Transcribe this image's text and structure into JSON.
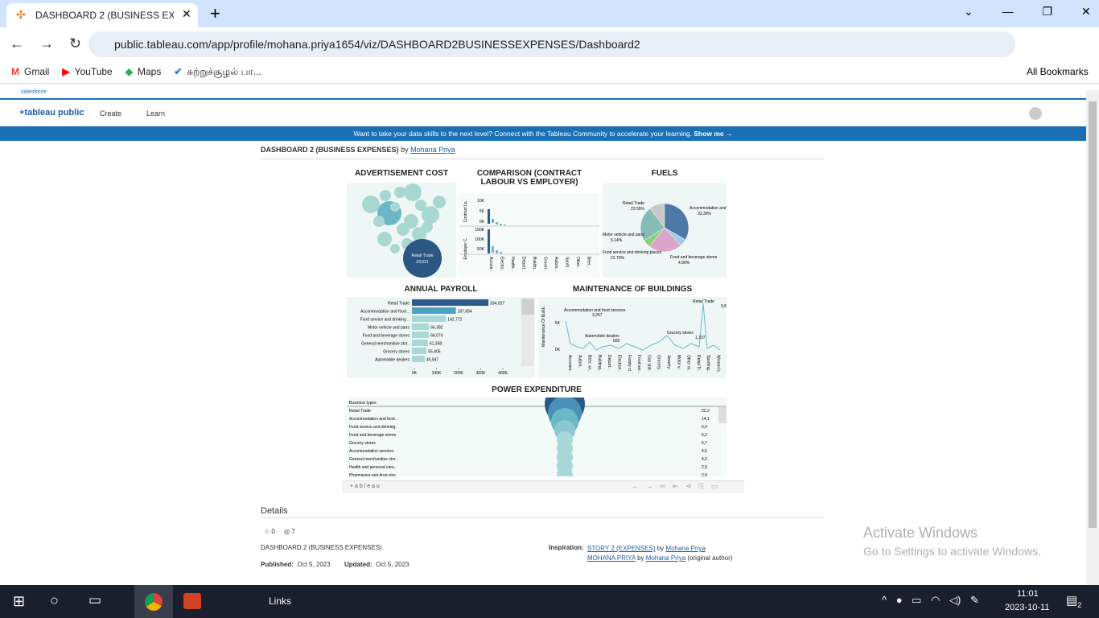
{
  "browser": {
    "tab_title": "DASHBOARD 2 (BUSINESS EXPE",
    "url": "public.tableau.com/app/profile/mohana.priya1654/viz/DASHBOARD2BUSINESSEXPENSES/Dashboard2",
    "bookmarks": [
      "Gmail",
      "YouTube",
      "Maps",
      "சுற்றுச்சூழல் பா..."
    ],
    "all_bookmarks": "All Bookmarks"
  },
  "site": {
    "brand": "salesforce",
    "logo": "+tableau public",
    "nav": [
      "Create",
      "Learn"
    ],
    "banner": "Want to take your data skills to the next level? Connect with the Tableau Community to accelerate your learning.",
    "banner_link": "Show me →"
  },
  "viz": {
    "title": "DASHBOARD 2 (BUSINESS EXPENSES)",
    "by": "by",
    "author": "Mohana Priya",
    "footer_logo": "+ a b l e a u"
  },
  "advertisement": {
    "title": "ADVERTISEMENT COST",
    "label_name": "Retail Trade",
    "label_value": "23,021"
  },
  "comparison": {
    "title": "COMPARISON (CONTRACT LABOUR VS EMPLOYER)",
    "top_axis": "Contract La..",
    "bottom_axis": "Employer C..",
    "top_ticks": [
      "10K",
      "5K",
      "0K"
    ],
    "bottom_ticks": [
      "150K",
      "100K",
      "50K"
    ],
    "categories": [
      "Accom..",
      "Electro..",
      "Health..",
      "Depart..",
      "Buildin..",
      "Grocer..",
      "Autom..",
      "Sporti..",
      "Other..",
      "Beer,.."
    ]
  },
  "fuels": {
    "title": "FUELS",
    "type": "pie",
    "categories": [
      "Accommodation and food services",
      "Food and beverage stores",
      "Food service and drinking places",
      "Motor vehicle and parts",
      "Retail Trade"
    ],
    "values": [
      33.3,
      4.9,
      22.7,
      5.14,
      23.55
    ],
    "value_labels": [
      "33.30%",
      "4.90%",
      "22.70%",
      "5.14%",
      "23.55%"
    ],
    "colors": [
      "#4e79a7",
      "#a0cbe8",
      "#d9a6c9",
      "#8cd17d",
      "#86bcb6"
    ]
  },
  "payroll": {
    "title": "ANNUAL PAYROLL",
    "type": "bar",
    "categories": [
      "Retail Trade",
      "Accommodation and food ..",
      "Food service and drinking ..",
      "Motor vehicle and parts",
      "Food and beverage stores",
      "General merchandise stor..",
      "Grocery stores",
      "Automobile dealers"
    ],
    "values": [
      334927,
      187654,
      142772,
      66382,
      66074,
      61358,
      55405,
      46947
    ],
    "value_labels": [
      "334,927",
      "187,654",
      "142,772",
      "66,382",
      "66,074",
      "61,358",
      "55,405",
      "46,947"
    ],
    "colors": [
      "#2f5b8a",
      "#4aa3c0",
      "#a8d8d8"
    ],
    "xlim": [
      0,
      400000
    ],
    "xticks": [
      {
        "value": 0,
        "label": "0K"
      },
      {
        "value": 100000,
        "label": "100K"
      },
      {
        "value": 200000,
        "label": "200K"
      },
      {
        "value": 300000,
        "label": "300K"
      },
      {
        "value": 400000,
        "label": "400K"
      }
    ]
  },
  "maintenance": {
    "title": "MAINTENANCE OF BUILDINGS",
    "axis_label": "Maintenance Of Buildi..",
    "ticks": [
      "5K",
      "0K"
    ],
    "annotations": [
      {
        "name": "Accommodation and food services",
        "value": "3,257"
      },
      {
        "name": "Automobile dealers",
        "value": "500"
      },
      {
        "name": "Grocery stores",
        "value": "1,337"
      },
      {
        "name": "Retail Trade",
        "value": "9,882"
      }
    ],
    "categories": [
      "Accomm..",
      "Autom..",
      "Beer, wi..",
      "Building..",
      "Depart..",
      "Electron..",
      "Family cl..",
      "Food ser..",
      "Gas stat..",
      "Grocery..",
      "Jewelry..",
      "Motor v..",
      "Other m..",
      "Retail Tr..",
      "Sporting..",
      "Women's.."
    ]
  },
  "power": {
    "title": "POWER EXPENDITURE",
    "header": "Business types",
    "rows": [
      [
        "Retail Trade",
        "22,2"
      ],
      [
        "Accommodation and food ..",
        "14,1"
      ],
      [
        "Food service and drinking..",
        "5,9"
      ],
      [
        "Food and beverage stores",
        "6,2"
      ],
      [
        "Grocery stores",
        "5,7"
      ],
      [
        "Accommodation services",
        "4,5"
      ],
      [
        "General merchandise stor..",
        "4,0"
      ],
      [
        "Health and personal care..",
        "2,9"
      ],
      [
        "Pharmacies and drug stor..",
        "2,9"
      ]
    ]
  },
  "details": {
    "heading": "Details",
    "favorites": "0",
    "views": "7",
    "name": "DASHBOARD 2 (BUSINESS EXPENSES)",
    "published_label": "Published:",
    "published": "Oct 5, 2023",
    "updated_label": "Updated:",
    "updated": "Oct 5, 2023",
    "inspiration_label": "Inspiration:",
    "inspiration": [
      {
        "title": "STORY 2 (EXPENSES)",
        "by": "by",
        "author": "Mohana Priya",
        "note": ""
      },
      {
        "title": "MOHANA PRIYA",
        "by": "by",
        "author": "Mohana Priya",
        "note": "(original author)"
      }
    ]
  },
  "watermark": {
    "line1": "Activate Windows",
    "line2": "Go to Settings to activate Windows."
  },
  "taskbar": {
    "links": "Links",
    "time": "11:01",
    "date": "2023-10-11",
    "notifications": "2"
  }
}
